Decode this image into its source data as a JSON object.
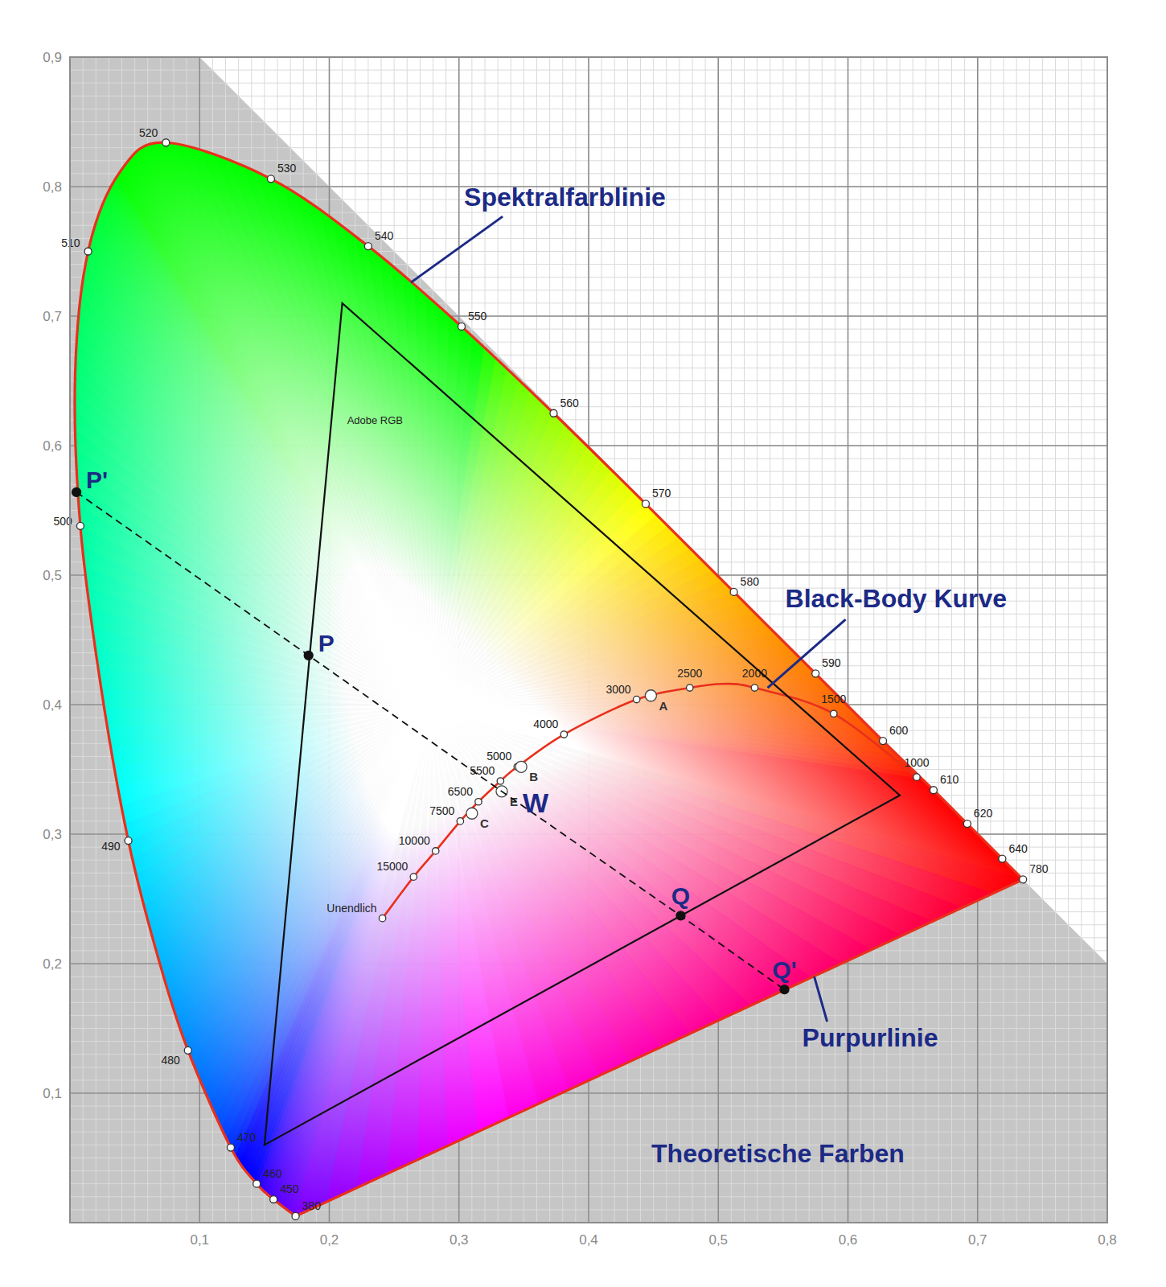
{
  "chart_data": {
    "type": "chromaticity",
    "xlim": [
      0,
      0.8
    ],
    "ylim": [
      0,
      0.9
    ],
    "xticks": [
      {
        "value": 0.1,
        "label": "0,1"
      },
      {
        "value": 0.2,
        "label": "0,2"
      },
      {
        "value": 0.3,
        "label": "0,3"
      },
      {
        "value": 0.4,
        "label": "0,4"
      },
      {
        "value": 0.5,
        "label": "0,5"
      },
      {
        "value": 0.6,
        "label": "0,6"
      },
      {
        "value": 0.7,
        "label": "0,7"
      },
      {
        "value": 0.8,
        "label": "0,8"
      }
    ],
    "yticks": [
      {
        "value": 0.1,
        "label": "0,1"
      },
      {
        "value": 0.2,
        "label": "0,2"
      },
      {
        "value": 0.3,
        "label": "0,3"
      },
      {
        "value": 0.4,
        "label": "0,4"
      },
      {
        "value": 0.5,
        "label": "0,5"
      },
      {
        "value": 0.6,
        "label": "0,6"
      },
      {
        "value": 0.7,
        "label": "0,7"
      },
      {
        "value": 0.8,
        "label": "0,8"
      },
      {
        "value": 0.9,
        "label": "0,9"
      }
    ],
    "grid": true,
    "series": [
      {
        "type": "locus",
        "color": "#e8301c",
        "marker": "circle",
        "line_style": "solid",
        "labels": [
          380,
          450,
          460,
          470,
          480,
          null,
          490,
          null,
          500,
          null,
          510,
          null,
          520,
          530,
          540,
          550,
          560,
          570,
          580,
          590,
          600,
          610,
          620,
          640,
          780
        ],
        "x": [
          0.174,
          0.157,
          0.144,
          0.124,
          0.091,
          0.069,
          0.045,
          0.024,
          0.008,
          0.004,
          0.014,
          0.039,
          0.074,
          0.155,
          0.23,
          0.302,
          0.373,
          0.444,
          0.512,
          0.575,
          0.627,
          0.666,
          0.692,
          0.719,
          0.735
        ],
        "values": [
          0.005,
          0.018,
          0.03,
          0.058,
          0.133,
          0.201,
          0.295,
          0.413,
          0.538,
          0.655,
          0.75,
          0.812,
          0.834,
          0.806,
          0.754,
          0.692,
          0.625,
          0.555,
          0.487,
          0.424,
          0.372,
          0.334,
          0.308,
          0.281,
          0.265
        ]
      },
      {
        "type": "curve",
        "color": "#e8301c",
        "marker": "circle",
        "line_style": "solid",
        "labels": [
          "Unendlich",
          15000,
          10000,
          7500,
          6500,
          5500,
          5000,
          4000,
          3000,
          2500,
          null,
          2000,
          1500,
          1000
        ],
        "x": [
          0.241,
          0.265,
          0.282,
          0.301,
          0.315,
          0.332,
          0.345,
          0.381,
          0.437,
          0.478,
          0.503,
          0.528,
          0.589,
          0.653
        ],
        "values": [
          0.235,
          0.267,
          0.287,
          0.31,
          0.325,
          0.341,
          0.352,
          0.377,
          0.404,
          0.413,
          0.416,
          0.413,
          0.393,
          0.344
        ]
      },
      {
        "type": "polygon",
        "name": "Adobe RGB",
        "color": "#111111",
        "line_style": "solid",
        "x": [
          0.64,
          0.21,
          0.15
        ],
        "values": [
          0.33,
          0.71,
          0.06
        ]
      },
      {
        "type": "scatter",
        "color": "#ffffff",
        "marker": "circle",
        "labels": [
          "A",
          "B",
          "C",
          "E"
        ],
        "x": [
          0.448,
          0.348,
          0.31,
          0.333
        ],
        "values": [
          0.407,
          0.352,
          0.316,
          0.333
        ]
      },
      {
        "type": "line",
        "color": "#111111",
        "marker": "dot",
        "line_style": "dashed",
        "labels": [
          "P'",
          "P",
          "W",
          "Q",
          "Q'"
        ],
        "x": [
          0.005,
          0.184,
          0.333,
          0.471,
          0.551
        ],
        "values": [
          0.564,
          0.438,
          0.333,
          0.237,
          0.18
        ]
      }
    ],
    "annotations": [
      {
        "text": "Spektralfarblinie",
        "x": 0.263,
        "y": 0.726
      },
      {
        "text": "Black-Body Kurve",
        "x": 0.538,
        "y": 0.413
      },
      {
        "text": "Purpurlinie",
        "x": 0.574,
        "y": 0.19
      },
      {
        "text": "Theoretische Farben",
        "x": 0.546,
        "y": 0.054
      }
    ]
  }
}
